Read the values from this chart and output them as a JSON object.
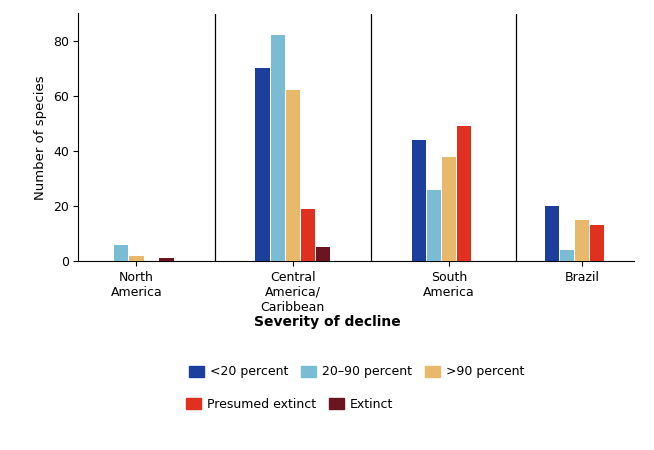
{
  "regions": [
    "North\nAmerica",
    "Central\nAmerica/\nCaribbean",
    "South\nAmerica",
    "Brazil"
  ],
  "categories": [
    "<20 percent",
    "20–90 percent",
    ">90 percent",
    "Presumed extinct",
    "Extinct"
  ],
  "colors": [
    "#1c3f9e",
    "#7bbcd5",
    "#e8b96a",
    "#e03020",
    "#6b1520"
  ],
  "values": {
    "North\nAmerica": [
      0,
      6,
      2,
      0,
      1
    ],
    "Central\nAmerica/\nCaribbean": [
      70,
      82,
      62,
      19,
      5
    ],
    "South\nAmerica": [
      44,
      26,
      38,
      49,
      0
    ],
    "Brazil": [
      20,
      4,
      15,
      13,
      0
    ]
  },
  "ylabel": "Number of species",
  "xlabel_title": "Severity of decline",
  "ylim": [
    0,
    90
  ],
  "yticks": [
    0,
    20,
    40,
    60,
    80
  ],
  "bar_width": 0.13,
  "figsize": [
    6.54,
    4.5
  ],
  "dpi": 100,
  "bg_color": "#ffffff",
  "group_positions": [
    0.35,
    1.7,
    3.05,
    4.2
  ]
}
